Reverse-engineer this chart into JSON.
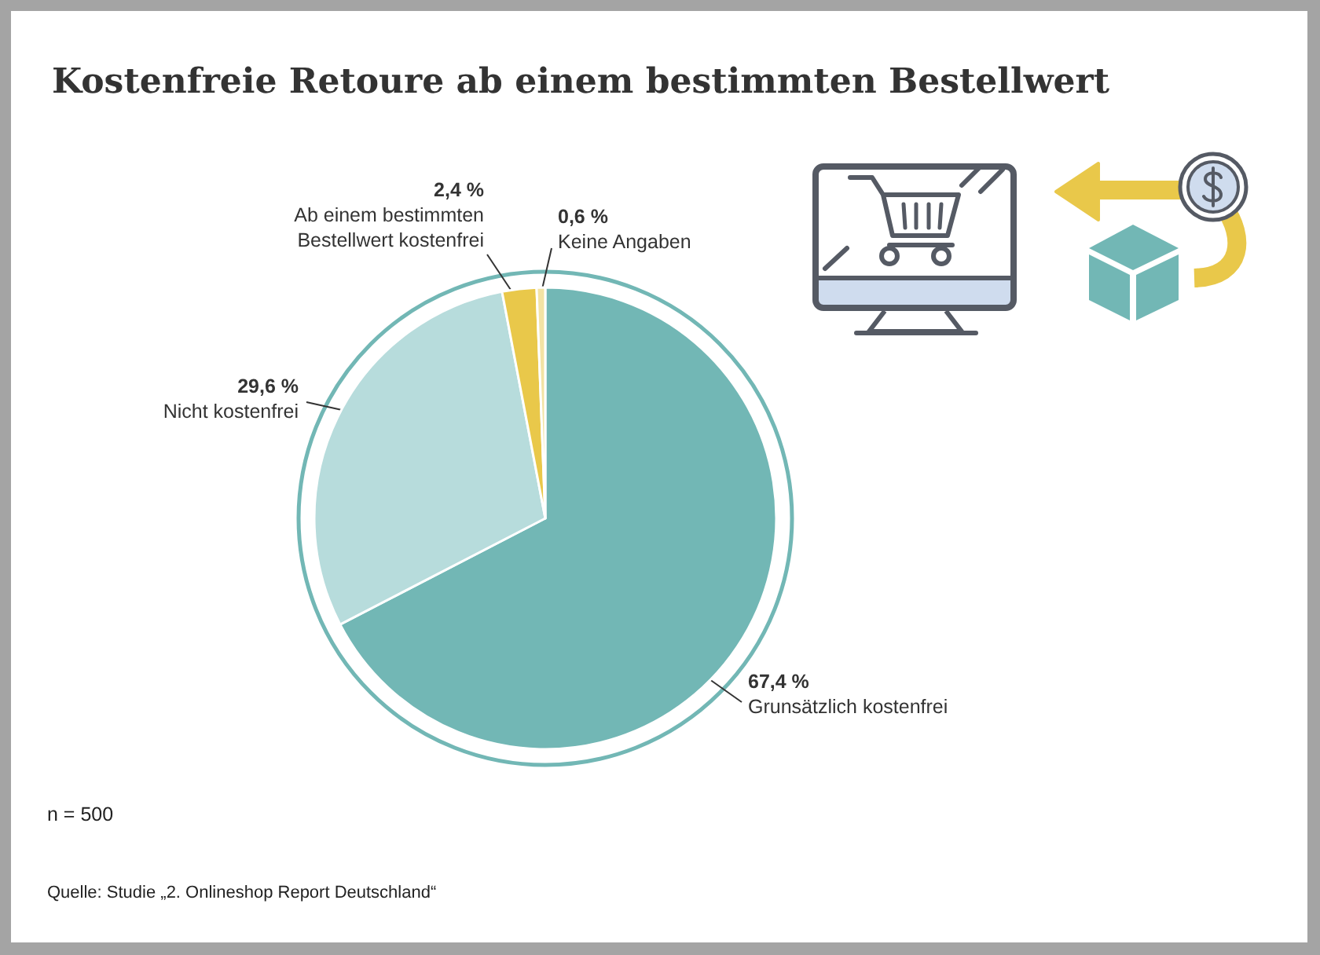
{
  "chart_data": {
    "type": "pie",
    "title": "Kostenfreie Retoure ab einem bestimmten Bestellwert",
    "categories": [
      "Grunsätzlich kostenfrei",
      "Nicht kostenfrei",
      "Ab einem bestimmten Bestellwert kostenfrei",
      "Keine Angaben"
    ],
    "values": [
      67.4,
      29.6,
      2.4,
      0.6
    ],
    "value_labels": [
      "67,4 %",
      "29,6 %",
      "2,4 %",
      "0,6 %"
    ],
    "colors": [
      "#72b7b5",
      "#b7dcdc",
      "#e9c84a",
      "#f3e3a4"
    ],
    "annotations": [
      "n = 500",
      "Quelle: Studie „2. Onlineshop Report Deutschland“"
    ]
  }
}
